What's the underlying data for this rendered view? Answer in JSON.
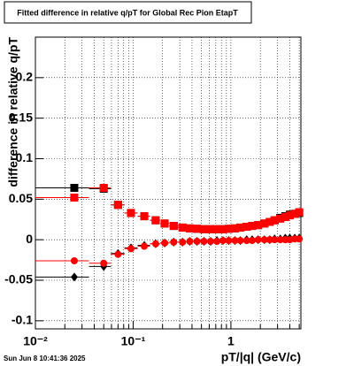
{
  "chart_data": {
    "type": "scatter",
    "title": "Fitted difference in relative q/pT for Global Rec Pion EtapT",
    "x_label": "pT/|q| (GeV/c)",
    "y_label": "difference in relative q/pT",
    "timestamp": "Sun Jun  8 10:41:36 2025",
    "x_log": true,
    "grid": true,
    "xlim": [
      0.01,
      5.2
    ],
    "ylim": [
      -0.11,
      0.25
    ],
    "xticks": [
      {
        "value": 0.01,
        "label": "10⁻²"
      },
      {
        "value": 0.1,
        "label": "10⁻¹"
      },
      1
    ],
    "yticks": [
      -0.1,
      -0.05,
      0,
      0.05,
      0.1,
      0.15,
      0.2
    ],
    "x": [
      0.025,
      0.05,
      0.07,
      0.095,
      0.13,
      0.17,
      0.21,
      0.26,
      0.32,
      0.38,
      0.45,
      0.53,
      0.62,
      0.72,
      0.83,
      0.95,
      1.1,
      1.25,
      1.45,
      1.65,
      1.9,
      2.2,
      2.5,
      2.8,
      3.2,
      3.6,
      4.0,
      4.5,
      5.0
    ],
    "series": [
      {
        "color": "#000000",
        "marker": "square",
        "values": [
          0.064,
          0.063,
          0.043,
          0.033,
          0.029,
          0.024,
          0.02,
          0.017,
          0.015,
          0.014,
          0.0135,
          0.013,
          0.013,
          0.013,
          0.013,
          0.0135,
          0.014,
          0.015,
          0.016,
          0.017,
          0.018,
          0.02,
          0.022,
          0.024,
          0.027,
          0.029,
          0.031,
          0.032,
          0.033
        ]
      },
      {
        "color": "#000000",
        "marker": "diamond",
        "values": [
          -0.046,
          -0.033,
          -0.017,
          -0.01,
          -0.007,
          -0.005,
          -0.004,
          -0.003,
          -0.003,
          -0.002,
          -0.002,
          -0.002,
          -0.002,
          -0.001,
          -0.001,
          -0.001,
          -0.001,
          -0.001,
          0,
          0,
          0,
          0,
          0,
          0.001,
          0.001,
          0.002,
          0.002,
          0.002,
          0.002
        ]
      },
      {
        "color": "#ff0000",
        "marker": "square",
        "values": [
          0.052,
          0.064,
          0.043,
          0.033,
          0.029,
          0.024,
          0.02,
          0.017,
          0.015,
          0.014,
          0.0135,
          0.013,
          0.013,
          0.013,
          0.013,
          0.0135,
          0.014,
          0.015,
          0.016,
          0.017,
          0.018,
          0.02,
          0.022,
          0.024,
          0.026,
          0.028,
          0.03,
          0.032,
          0.034
        ]
      },
      {
        "color": "#ff0000",
        "marker": "circle",
        "values": [
          -0.026,
          -0.029,
          -0.018,
          -0.011,
          -0.008,
          -0.005,
          -0.004,
          -0.003,
          -0.003,
          -0.002,
          -0.002,
          -0.002,
          -0.002,
          -0.002,
          -0.001,
          -0.001,
          -0.001,
          -0.001,
          -0.001,
          -0.001,
          0,
          0,
          0,
          0,
          0,
          0,
          0,
          0.001,
          0.001
        ]
      }
    ]
  }
}
